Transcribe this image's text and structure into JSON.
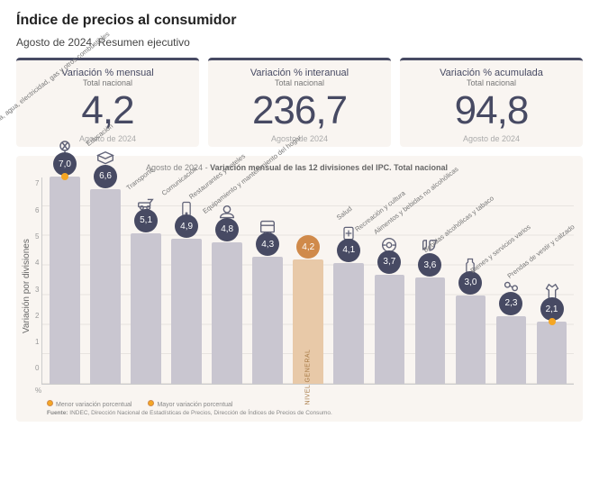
{
  "page": {
    "title": "Índice de precios al consumidor",
    "subtitle": "Agosto de 2024. Resumen ejecutivo"
  },
  "kpis": [
    {
      "label": "Variación % mensual",
      "sublabel": "Total nacional",
      "value": "4,2",
      "date": "Agosto de 2024"
    },
    {
      "label": "Variación % interanual",
      "sublabel": "Total nacional",
      "value": "236,7",
      "date": "Agosto de 2024"
    },
    {
      "label": "Variación % acumulada",
      "sublabel": "Total nacional",
      "value": "94,8",
      "date": "Agosto de 2024"
    }
  ],
  "chart": {
    "header_prefix": "Agosto de 2024",
    "header_text": "Variación mensual de las 12 divisiones del IPC. Total nacional",
    "ylabel": "Variación por divisiones",
    "pct_label": "%",
    "type": "bar",
    "ylim": [
      0,
      7
    ],
    "ytick_step": 1,
    "yticks": [
      "7",
      "6",
      "5",
      "4",
      "3",
      "2",
      "1",
      "0"
    ],
    "colors": {
      "bar": "#c9c6d0",
      "bar_general": "#e8c9a8",
      "badge": "#474a63",
      "badge_general": "#d08a4a",
      "marker": "#f5a623",
      "background": "#f9f5f1",
      "grid": "#e8e4e0"
    },
    "bars": [
      {
        "label": "Vivienda, agua, electricidad, gas y otros combustibles",
        "value": 7.0,
        "display": "7,0",
        "general": false,
        "marker": true
      },
      {
        "label": "Educación",
        "value": 6.6,
        "display": "6,6",
        "general": false,
        "marker": false
      },
      {
        "label": "Transporte",
        "value": 5.1,
        "display": "5,1",
        "general": false,
        "marker": false
      },
      {
        "label": "Comunicación",
        "value": 4.9,
        "display": "4,9",
        "general": false,
        "marker": false
      },
      {
        "label": "Restaurantes y hoteles",
        "value": 4.8,
        "display": "4,8",
        "general": false,
        "marker": false
      },
      {
        "label": "Equipamiento y mantenimiento del hogar",
        "value": 4.3,
        "display": "4,3",
        "general": false,
        "marker": false
      },
      {
        "label": "NIVEL GENERAL",
        "value": 4.2,
        "display": "4,2",
        "general": true,
        "marker": false
      },
      {
        "label": "Salud",
        "value": 4.1,
        "display": "4,1",
        "general": false,
        "marker": false
      },
      {
        "label": "Recreación y cultura",
        "value": 3.7,
        "display": "3,7",
        "general": false,
        "marker": false
      },
      {
        "label": "Alimentos y bebidas no alcohólicas",
        "value": 3.6,
        "display": "3,6",
        "general": false,
        "marker": false
      },
      {
        "label": "Bebidas alcohólicas y tabaco",
        "value": 3.0,
        "display": "3,0",
        "general": false,
        "marker": false
      },
      {
        "label": "Bienes y servicios varios",
        "value": 2.3,
        "display": "2,3",
        "general": false,
        "marker": false
      },
      {
        "label": "Prendas de vestir y calzado",
        "value": 2.1,
        "display": "2,1",
        "general": false,
        "marker": true
      }
    ],
    "legend": {
      "min": "Menor variación porcentual",
      "max": "Mayor variación porcentual"
    },
    "source_label": "Fuente:",
    "source": "INDEC, Dirección Nacional de Estadísticas de Precios, Dirección de Índices de Precios de Consumo."
  }
}
